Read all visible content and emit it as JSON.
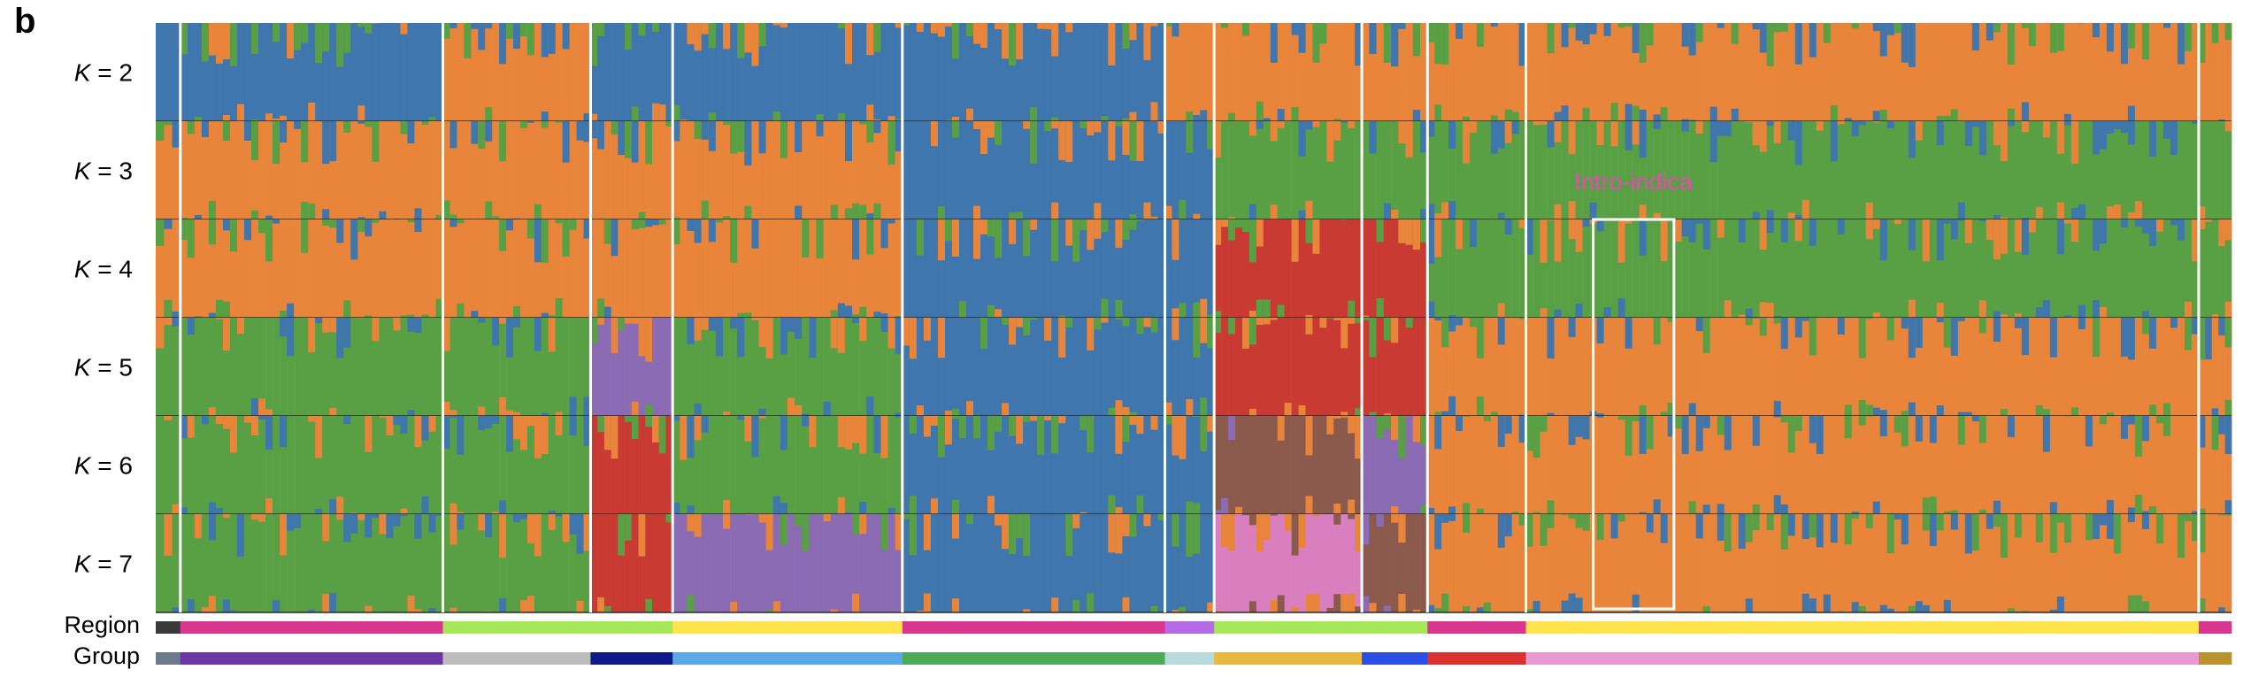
{
  "panel_letter": "b",
  "row_labels": {
    "region": "Region",
    "group": "Group"
  },
  "annotation": {
    "text": "Intro-indica",
    "color": "#e64ab3"
  },
  "colors": {
    "orange": "#e8853a",
    "blue": "#3e76ad",
    "green": "#58a043",
    "red": "#c93a32",
    "purple": "#8b6bb4",
    "brown": "#8b5a4c",
    "pink": "#d97fbf"
  },
  "chart_data": {
    "type": "stacked-bar",
    "description_k_prefix": "K",
    "k_values": [
      2,
      3,
      4,
      5,
      6,
      7
    ],
    "ylim": [
      0,
      1
    ],
    "groups": [
      {
        "id": "g1",
        "width": 1.5,
        "region_color": "#3a3a3a",
        "group_color": "#6b7b8a"
      },
      {
        "id": "g2",
        "width": 16,
        "region_color": "#d9368f",
        "group_color": "#6a36a8"
      },
      {
        "id": "g3",
        "width": 9,
        "region_color": "#a6e85a",
        "group_color": "#bdbdbd"
      },
      {
        "id": "g4",
        "width": 5,
        "region_color": "#a6e85a",
        "group_color": "#0f1a8a"
      },
      {
        "id": "g5",
        "width": 14,
        "region_color": "#ffe44d",
        "group_color": "#5aa8e6"
      },
      {
        "id": "g6",
        "width": 16,
        "region_color": "#d9368f",
        "group_color": "#4bab58"
      },
      {
        "id": "g7",
        "width": 3,
        "region_color": "#b56be6",
        "group_color": "#b8dcdc"
      },
      {
        "id": "g8",
        "width": 9,
        "region_color": "#a6e85a",
        "group_color": "#e8b840"
      },
      {
        "id": "g9",
        "width": 4,
        "region_color": "#a6e85a",
        "group_color": "#2a4ee6"
      },
      {
        "id": "g10",
        "width": 6,
        "region_color": "#d9368f",
        "group_color": "#d93030"
      },
      {
        "id": "g11",
        "width": 41,
        "region_color": "#ffe44d",
        "group_color": "#e89ad2"
      },
      {
        "id": "g12",
        "width": 2,
        "region_color": "#d9368f",
        "group_color": "#b8922a"
      }
    ],
    "dominant_ancestry": {
      "K2": [
        "blue",
        "blue",
        "orange",
        "blue",
        "blue",
        "blue",
        "orange",
        "orange",
        "orange",
        "orange",
        "orange",
        "orange"
      ],
      "K3": [
        "orange",
        "orange",
        "orange",
        "orange",
        "orange",
        "blue",
        "blue",
        "green",
        "green",
        "green",
        "green",
        "green"
      ],
      "K4": [
        "orange",
        "orange",
        "orange",
        "orange",
        "orange",
        "blue",
        "blue",
        "red",
        "red",
        "green",
        "green",
        "green"
      ],
      "K5": [
        "green",
        "green",
        "green",
        "purple",
        "green",
        "blue",
        "blue",
        "red",
        "red",
        "orange",
        "orange",
        "orange"
      ],
      "K6": [
        "green",
        "green",
        "green",
        "red",
        "green",
        "blue",
        "blue",
        "brown",
        "purple",
        "orange",
        "orange",
        "orange"
      ],
      "K7": [
        "green",
        "green",
        "green",
        "red",
        "purple",
        "blue",
        "blue",
        "pink",
        "brown",
        "orange",
        "orange",
        "orange"
      ]
    },
    "highlight": {
      "label": "Intro-indica",
      "group": "g11",
      "start_fraction": 0.1,
      "end_fraction": 0.22
    }
  }
}
